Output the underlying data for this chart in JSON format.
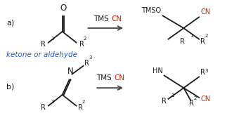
{
  "background": "#ffffff",
  "black": "#1a1a1a",
  "red": "#cc2200",
  "blue": "#2255cc",
  "arrow_color": "#444444",
  "line_color": "#1a1a1a",
  "lw": 1.3,
  "label_a": "a)",
  "label_b": "b)",
  "subtitle": "ketone or aldehyde"
}
